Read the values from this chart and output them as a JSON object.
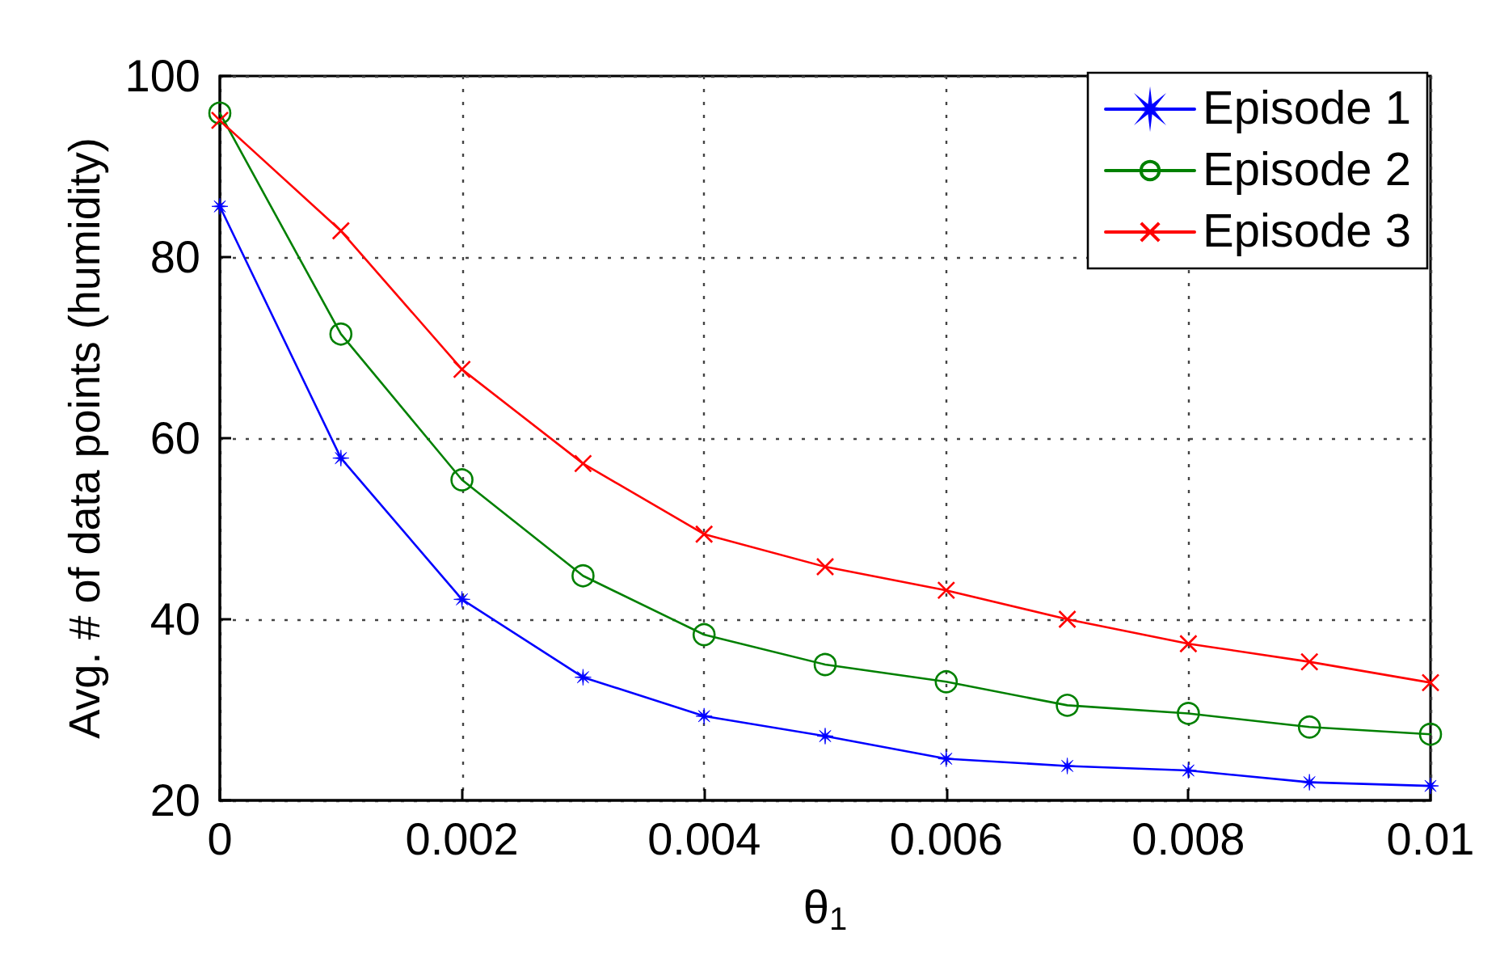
{
  "chart_data": {
    "type": "line",
    "xlabel": "θ$_{1}$",
    "ylabel": "Avg. # of data points (humidity)",
    "x": [
      0,
      0.001,
      0.002,
      0.003,
      0.004,
      0.005,
      0.006,
      0.007,
      0.008,
      0.009,
      0.01
    ],
    "series": [
      {
        "name": "Episode 1",
        "color": "#0000ff",
        "marker": "star",
        "values": [
          85.6,
          57.8,
          42.2,
          33.6,
          29.3,
          27.1,
          24.6,
          23.8,
          23.3,
          22.0,
          21.6
        ]
      },
      {
        "name": "Episode 2",
        "color": "#008000",
        "marker": "circle",
        "values": [
          95.9,
          71.5,
          55.4,
          44.8,
          38.3,
          35.0,
          33.1,
          30.5,
          29.6,
          28.1,
          27.3
        ]
      },
      {
        "name": "Episode 3",
        "color": "#ff0000",
        "marker": "cross",
        "values": [
          95.1,
          82.9,
          67.6,
          57.2,
          49.4,
          45.8,
          43.2,
          40.0,
          37.3,
          35.3,
          33.0
        ]
      }
    ],
    "xlim": [
      0,
      0.01
    ],
    "xticks": [
      0,
      0.002,
      0.004,
      0.006,
      0.008,
      0.01
    ],
    "ylim": [
      20,
      100
    ],
    "yticks": [
      20,
      40,
      60,
      80,
      100
    ],
    "grid": true,
    "legend": "top right",
    "line_style": "solid"
  }
}
